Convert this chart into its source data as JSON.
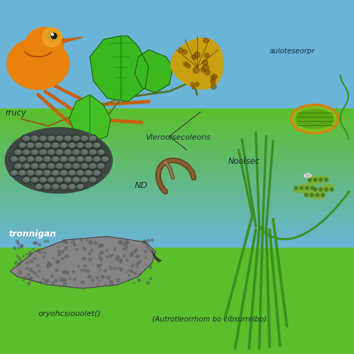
{
  "sky_color": "#6ab4d8",
  "ground_color": "#5abf2a",
  "labels": {
    "bottom_left": "oryohcsiouolet()",
    "bottom_center": "(Autrotleorrhom bo clbsurrelbo)",
    "mid_left": "rrucy",
    "mid_center": "Vleroolsecoleoris",
    "mid_right": "Noolsec",
    "top_right": "auloteseorpr",
    "nd_label": "ND",
    "tronnigan": "tronnigan"
  }
}
